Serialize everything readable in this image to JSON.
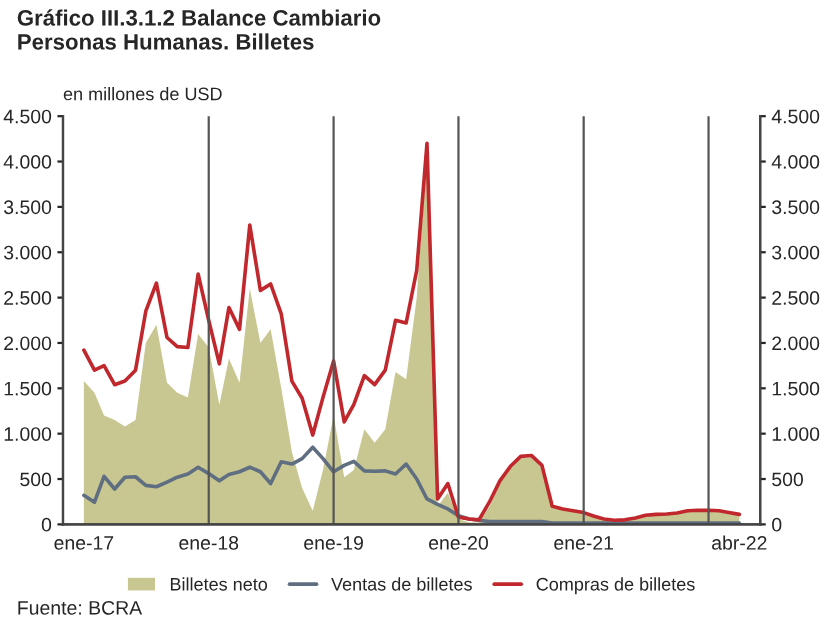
{
  "chart_data": {
    "type": "line",
    "title": "Gráfico III.3.1.2 Balance Cambiario\nPersonas Humanas. Billetes",
    "ylabel": "en millones de USD",
    "annotations": [
      "Fuente: BCRA"
    ],
    "x": [
      "2017-01",
      "2017-02",
      "2017-03",
      "2017-04",
      "2017-05",
      "2017-06",
      "2017-07",
      "2017-08",
      "2017-09",
      "2017-10",
      "2017-11",
      "2017-12",
      "2018-01",
      "2018-02",
      "2018-03",
      "2018-04",
      "2018-05",
      "2018-06",
      "2018-07",
      "2018-08",
      "2018-09",
      "2018-10",
      "2018-11",
      "2018-12",
      "2019-01",
      "2019-02",
      "2019-03",
      "2019-04",
      "2019-05",
      "2019-06",
      "2019-07",
      "2019-08",
      "2019-09",
      "2019-10",
      "2019-11",
      "2019-12",
      "2020-01",
      "2020-02",
      "2020-03",
      "2020-04",
      "2020-05",
      "2020-06",
      "2020-07",
      "2020-08",
      "2020-09",
      "2020-10",
      "2020-11",
      "2020-12",
      "2021-01",
      "2021-02",
      "2021-03",
      "2021-04",
      "2021-05",
      "2021-06",
      "2021-07",
      "2021-08",
      "2021-09",
      "2021-10",
      "2021-11",
      "2021-12",
      "2022-01",
      "2022-02",
      "2022-03",
      "2022-04"
    ],
    "series": [
      {
        "name": "Billetes neto",
        "type": "area",
        "color": "#c9c791",
        "values": [
          1580,
          1450,
          1200,
          1150,
          1080,
          1150,
          2000,
          2200,
          1560,
          1450,
          1400,
          2100,
          1950,
          1320,
          1830,
          1560,
          2600,
          2000,
          2150,
          1500,
          800,
          400,
          150,
          600,
          1200,
          520,
          600,
          1050,
          900,
          1050,
          1680,
          1600,
          2500,
          4100,
          200,
          350,
          60,
          20,
          20,
          200,
          450,
          620,
          730,
          740,
          620,
          180,
          160,
          140,
          120,
          80,
          50,
          35,
          40,
          60,
          90,
          100,
          105,
          115,
          140,
          145,
          145,
          140,
          120,
          100
        ]
      },
      {
        "name": "Ventas de billetes",
        "color": "#5f6e80",
        "values": [
          320,
          245,
          530,
          390,
          520,
          525,
          430,
          415,
          465,
          520,
          555,
          630,
          560,
          480,
          550,
          580,
          630,
          580,
          450,
          690,
          665,
          725,
          850,
          725,
          580,
          650,
          695,
          590,
          585,
          590,
          555,
          665,
          500,
          280,
          220,
          170,
          95,
          60,
          45,
          30,
          30,
          30,
          30,
          30,
          30,
          15,
          15,
          15,
          15,
          15,
          15,
          15,
          15,
          15,
          15,
          15,
          15,
          15,
          15,
          15,
          15,
          15,
          15,
          15
        ]
      },
      {
        "name": "Compras de billetes",
        "color": "#c0282d",
        "values": [
          1920,
          1700,
          1750,
          1540,
          1580,
          1700,
          2350,
          2660,
          2060,
          1960,
          1950,
          2760,
          2250,
          1770,
          2390,
          2150,
          3300,
          2580,
          2650,
          2320,
          1580,
          1390,
          985,
          1400,
          1800,
          1130,
          1320,
          1640,
          1540,
          1700,
          2250,
          2220,
          2800,
          4200,
          280,
          450,
          80,
          60,
          50,
          250,
          480,
          640,
          750,
          760,
          650,
          200,
          170,
          150,
          130,
          90,
          60,
          45,
          50,
          70,
          100,
          110,
          115,
          125,
          150,
          155,
          155,
          150,
          130,
          110
        ]
      }
    ],
    "xlim": [
      "2016-11",
      "2022-06"
    ],
    "xticks": [
      {
        "value": "2017-01",
        "label": "ene-17"
      },
      {
        "value": "2018-01",
        "label": "ene-18"
      },
      {
        "value": "2019-01",
        "label": "ene-19"
      },
      {
        "value": "2020-01",
        "label": "ene-20"
      },
      {
        "value": "2021-01",
        "label": "ene-21"
      },
      {
        "value": "2022-04",
        "label": "abr-22"
      }
    ],
    "ylim": [
      0,
      4500
    ],
    "yticks": [
      0,
      500,
      {
        "value": 1000,
        "label": "1.000"
      },
      {
        "value": 1500,
        "label": "1.500"
      },
      {
        "value": 2000,
        "label": "2.000"
      },
      {
        "value": 2500,
        "label": "2.500"
      },
      {
        "value": 3000,
        "label": "3.000"
      },
      {
        "value": 3500,
        "label": "3.500"
      },
      {
        "value": 4000,
        "label": "4.000"
      },
      {
        "value": 4500,
        "label": "4.500"
      }
    ],
    "y2lim": [
      0,
      4500
    ],
    "y2ticks": [
      0,
      500,
      {
        "value": 1000,
        "label": "1.000"
      },
      {
        "value": 1500,
        "label": "1.500"
      },
      {
        "value": 2000,
        "label": "2.000"
      },
      {
        "value": 2500,
        "label": "2.500"
      },
      {
        "value": 3000,
        "label": "3.000"
      },
      {
        "value": 3500,
        "label": "3.500"
      },
      {
        "value": 4000,
        "label": "4.000"
      },
      {
        "value": 4500,
        "label": "4.500"
      }
    ],
    "ref_lines": [
      {
        "axis": "x",
        "value": "2018-01",
        "color": "#555555"
      },
      {
        "axis": "x",
        "value": "2019-01",
        "color": "#555555"
      },
      {
        "axis": "x",
        "value": "2020-01",
        "color": "#555555"
      },
      {
        "axis": "x",
        "value": "2021-01",
        "color": "#555555"
      },
      {
        "axis": "x",
        "value": "2022-01",
        "color": "#555555"
      }
    ],
    "legend": "bottom",
    "grid": false
  }
}
